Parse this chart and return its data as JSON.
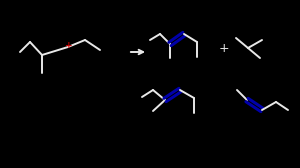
{
  "bg_color": "#000000",
  "line_color": "#e8e8e8",
  "blue_color": "#0000aa",
  "red_color": "#cc0000",
  "lw": 1.4
}
